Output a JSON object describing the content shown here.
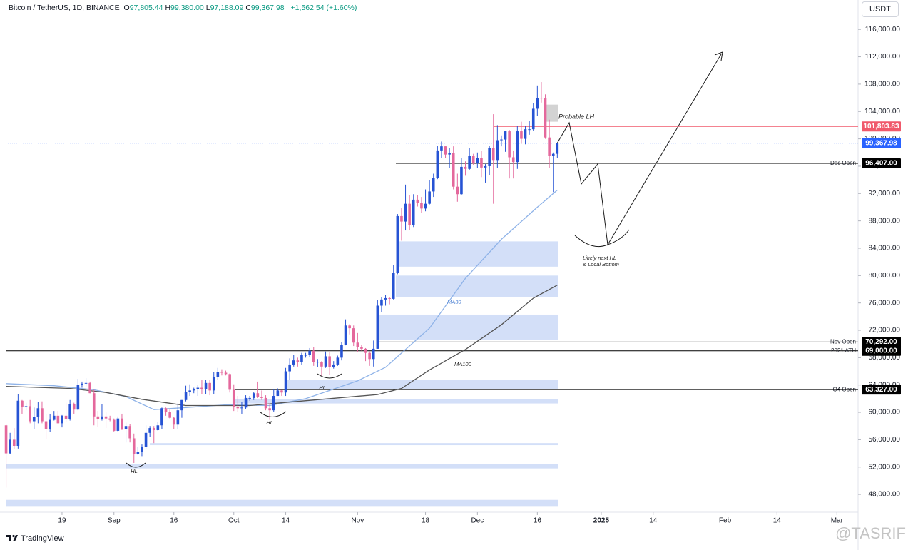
{
  "chart_data": {
    "type": "candlestick",
    "symbol": "Bitcoin / TetherUS, 1D, BINANCE",
    "ohlc_legend": [
      {
        "key": "O",
        "value": "97,805.44"
      },
      {
        "key": "H",
        "value": "99,380.00"
      },
      {
        "key": "L",
        "value": "97,188.09"
      },
      {
        "key": "C",
        "value": "99,367.98"
      }
    ],
    "change": "+1,562.54 (+1.60%)",
    "currency": "USDT",
    "brand": "TradingView",
    "watermark": "@TASRIF",
    "up_color": "#2653d4",
    "down_color": "#e4689c",
    "xlim": [
      -0.1,
      213.3
    ],
    "ylim": [
      45400,
      120300
    ],
    "xticks": [
      {
        "value": 14,
        "label": "19"
      },
      {
        "value": 27,
        "label": "Sep"
      },
      {
        "value": 42,
        "label": "16"
      },
      {
        "value": 57,
        "label": "Oct"
      },
      {
        "value": 70,
        "label": "14"
      },
      {
        "value": 88,
        "label": "Nov"
      },
      {
        "value": 105,
        "label": "18"
      },
      {
        "value": 118,
        "label": "Dec"
      },
      {
        "value": 133,
        "label": "16"
      },
      {
        "value": 149,
        "label": "2025"
      },
      {
        "value": 162,
        "label": "14"
      },
      {
        "value": 180,
        "label": "Feb"
      },
      {
        "value": 193,
        "label": "14"
      },
      {
        "value": 208,
        "label": "Mar"
      }
    ],
    "yticks": [
      {
        "value": 48000,
        "label": "48,000.00"
      },
      {
        "value": 52000,
        "label": "52,000.00"
      },
      {
        "value": 56000,
        "label": "56,000.00"
      },
      {
        "value": 60000,
        "label": "60,000.00"
      },
      {
        "value": 64000,
        "label": "64,000.00"
      },
      {
        "value": 68000,
        "label": "68,000.00"
      },
      {
        "value": 72000,
        "label": "72,000.00"
      },
      {
        "value": 76000,
        "label": "76,000.00"
      },
      {
        "value": 80000,
        "label": "80,000.00"
      },
      {
        "value": 84000,
        "label": "84,000.00"
      },
      {
        "value": 88000,
        "label": "88,000.00"
      },
      {
        "value": 92000,
        "label": "92,000.00"
      },
      {
        "value": 96000,
        "label": "96,000.00"
      },
      {
        "value": 100000,
        "label": "100,000.00"
      },
      {
        "value": 104000,
        "label": "104,000.00"
      },
      {
        "value": 108000,
        "label": "108,000.00"
      },
      {
        "value": 112000,
        "label": "112,000.00"
      },
      {
        "value": 116000,
        "label": "116,000.00"
      }
    ],
    "x": [
      0,
      1,
      2,
      3,
      4,
      5,
      6,
      7,
      8,
      9,
      10,
      11,
      12,
      13,
      14,
      15,
      16,
      17,
      18,
      19,
      20,
      21,
      22,
      23,
      24,
      25,
      26,
      27,
      28,
      29,
      30,
      31,
      32,
      33,
      34,
      35,
      36,
      37,
      38,
      39,
      40,
      41,
      42,
      43,
      44,
      45,
      46,
      47,
      48,
      49,
      50,
      51,
      52,
      53,
      54,
      55,
      56,
      57,
      58,
      59,
      60,
      61,
      62,
      63,
      64,
      65,
      66,
      67,
      68,
      69,
      70,
      71,
      72,
      73,
      74,
      75,
      76,
      77,
      78,
      79,
      80,
      81,
      82,
      83,
      84,
      85,
      86,
      87,
      88,
      89,
      90,
      91,
      92,
      93,
      94,
      95,
      96,
      97,
      98,
      99,
      100,
      101,
      102,
      103,
      104,
      105,
      106,
      107,
      108,
      109,
      110,
      111,
      112,
      113,
      114,
      115,
      116,
      117,
      118,
      119,
      120,
      121,
      122,
      123,
      124,
      125,
      126,
      127,
      128,
      129,
      130,
      131,
      132,
      133,
      134,
      135,
      136,
      137,
      138
    ],
    "candles": [
      [
        58100,
        58300,
        49000,
        54000
      ],
      [
        54000,
        57000,
        53900,
        56000
      ],
      [
        56000,
        57700,
        54600,
        55100
      ],
      [
        55100,
        62700,
        54700,
        61700
      ],
      [
        61700,
        61800,
        59800,
        60800
      ],
      [
        60800,
        61400,
        60300,
        60900
      ],
      [
        60900,
        61800,
        58400,
        58700
      ],
      [
        58700,
        60700,
        57600,
        59300
      ],
      [
        59300,
        61500,
        58400,
        60600
      ],
      [
        60600,
        61600,
        58400,
        58700
      ],
      [
        58700,
        59800,
        56100,
        57500
      ],
      [
        57500,
        59800,
        57100,
        58900
      ],
      [
        58900,
        60200,
        58800,
        59500
      ],
      [
        59500,
        60200,
        58400,
        58400
      ],
      [
        58400,
        59600,
        57800,
        59500
      ],
      [
        59500,
        61400,
        58600,
        59000
      ],
      [
        59000,
        61800,
        58800,
        61200
      ],
      [
        61200,
        61400,
        59800,
        60400
      ],
      [
        60400,
        64900,
        60300,
        64000
      ],
      [
        64000,
        64500,
        63600,
        64200
      ],
      [
        64200,
        65000,
        63800,
        64300
      ],
      [
        64300,
        64500,
        62800,
        62800
      ],
      [
        62800,
        63300,
        58100,
        59400
      ],
      [
        59400,
        60200,
        57900,
        59000
      ],
      [
        59000,
        61200,
        58800,
        59400
      ],
      [
        59400,
        60000,
        57700,
        59100
      ],
      [
        59100,
        59500,
        58700,
        58900
      ],
      [
        58900,
        59100,
        57200,
        57300
      ],
      [
        57300,
        59400,
        57100,
        59100
      ],
      [
        59100,
        59800,
        57400,
        57500
      ],
      [
        57500,
        58500,
        55600,
        58000
      ],
      [
        58000,
        58300,
        55600,
        56200
      ],
      [
        56200,
        56900,
        52600,
        53900
      ],
      [
        53900,
        54900,
        53800,
        54200
      ],
      [
        54200,
        55300,
        53600,
        54900
      ],
      [
        54900,
        58100,
        54600,
        57000
      ],
      [
        57000,
        58000,
        56400,
        57700
      ],
      [
        57700,
        58000,
        55500,
        57400
      ],
      [
        57400,
        58600,
        57300,
        58100
      ],
      [
        58100,
        60700,
        57600,
        60600
      ],
      [
        60600,
        60700,
        59500,
        60000
      ],
      [
        60000,
        60400,
        59100,
        59200
      ],
      [
        59200,
        59300,
        57500,
        58200
      ],
      [
        58200,
        61300,
        57600,
        60300
      ],
      [
        60300,
        61800,
        59200,
        61800
      ],
      [
        61800,
        63900,
        61600,
        63000
      ],
      [
        63000,
        64100,
        62400,
        63200
      ],
      [
        63200,
        63600,
        62800,
        63400
      ],
      [
        63400,
        64000,
        62400,
        63600
      ],
      [
        63600,
        64800,
        62700,
        63400
      ],
      [
        63400,
        64800,
        62700,
        64300
      ],
      [
        64300,
        64800,
        62500,
        63200
      ],
      [
        63200,
        65900,
        62700,
        65200
      ],
      [
        65200,
        66500,
        64800,
        65900
      ],
      [
        65900,
        66300,
        65400,
        65800
      ],
      [
        65800,
        66100,
        65400,
        65600
      ],
      [
        65600,
        65700,
        62900,
        63300
      ],
      [
        63300,
        64100,
        60200,
        60800
      ],
      [
        60800,
        62400,
        60000,
        60600
      ],
      [
        60600,
        61500,
        59800,
        60700
      ],
      [
        60700,
        62500,
        60500,
        62100
      ],
      [
        62100,
        62400,
        61700,
        62100
      ],
      [
        62100,
        63000,
        61800,
        62800
      ],
      [
        62800,
        64500,
        62100,
        62200
      ],
      [
        62200,
        63200,
        61800,
        62100
      ],
      [
        62100,
        62500,
        60300,
        60600
      ],
      [
        60600,
        61300,
        58900,
        60300
      ],
      [
        60300,
        63400,
        60100,
        62400
      ],
      [
        62400,
        63500,
        62400,
        63200
      ],
      [
        63200,
        63300,
        62400,
        62900
      ],
      [
        62900,
        66500,
        62400,
        66000
      ],
      [
        66000,
        67900,
        64800,
        67000
      ],
      [
        67000,
        68400,
        66700,
        67600
      ],
      [
        67600,
        68000,
        66700,
        67400
      ],
      [
        67400,
        68700,
        67000,
        68400
      ],
      [
        68400,
        68700,
        68000,
        68400
      ],
      [
        68400,
        69400,
        68100,
        69000
      ],
      [
        69000,
        69500,
        66800,
        67400
      ],
      [
        67400,
        67800,
        66600,
        67400
      ],
      [
        67400,
        67500,
        65300,
        66700
      ],
      [
        66700,
        68900,
        66500,
        68200
      ],
      [
        68200,
        68800,
        65500,
        66600
      ],
      [
        66600,
        67500,
        66400,
        67000
      ],
      [
        67000,
        68300,
        66800,
        68000
      ],
      [
        68000,
        70300,
        67600,
        69900
      ],
      [
        69900,
        73600,
        69800,
        72700
      ],
      [
        72700,
        72900,
        71400,
        72300
      ],
      [
        72300,
        72700,
        69700,
        70200
      ],
      [
        70200,
        71600,
        68800,
        69500
      ],
      [
        69500,
        69900,
        69000,
        69300
      ],
      [
        69300,
        69400,
        67500,
        68700
      ],
      [
        68700,
        68900,
        66800,
        67800
      ],
      [
        67800,
        70500,
        66700,
        69300
      ],
      [
        69300,
        76400,
        69300,
        75600
      ],
      [
        75600,
        76900,
        74700,
        76500
      ],
      [
        76500,
        77200,
        75600,
        76700
      ],
      [
        76700,
        76800,
        75800,
        76600
      ],
      [
        76600,
        81500,
        76500,
        80400
      ],
      [
        80400,
        89000,
        80200,
        88700
      ],
      [
        88700,
        89900,
        85100,
        87900
      ],
      [
        87900,
        93300,
        86600,
        90500
      ],
      [
        90500,
        91800,
        86700,
        87400
      ],
      [
        87400,
        91900,
        87100,
        91100
      ],
      [
        91100,
        91800,
        90100,
        90600
      ],
      [
        90600,
        91500,
        89200,
        89800
      ],
      [
        89800,
        92600,
        89400,
        90500
      ],
      [
        90500,
        94000,
        90400,
        92300
      ],
      [
        92300,
        94900,
        91500,
        94300
      ],
      [
        94300,
        99000,
        94100,
        98300
      ],
      [
        98300,
        99600,
        97200,
        98900
      ],
      [
        98900,
        98900,
        97200,
        97700
      ],
      [
        97700,
        98700,
        95700,
        97900
      ],
      [
        97900,
        98900,
        92600,
        93000
      ],
      [
        93000,
        94900,
        90800,
        91900
      ],
      [
        91900,
        97200,
        91800,
        95900
      ],
      [
        95900,
        96700,
        94600,
        95600
      ],
      [
        95600,
        98700,
        95400,
        97500
      ],
      [
        97500,
        97800,
        96200,
        96400
      ],
      [
        96400,
        98000,
        95700,
        97200
      ],
      [
        97200,
        98200,
        94400,
        95800
      ],
      [
        95800,
        96300,
        93600,
        96000
      ],
      [
        96000,
        99000,
        94700,
        98700
      ],
      [
        98700,
        103600,
        90500,
        96900
      ],
      [
        96900,
        102000,
        95700,
        99800
      ],
      [
        99800,
        100500,
        98900,
        99900
      ],
      [
        99900,
        101200,
        98100,
        101100
      ],
      [
        101100,
        101300,
        94200,
        97300
      ],
      [
        97300,
        98300,
        94200,
        96600
      ],
      [
        96600,
        101900,
        95600,
        101100
      ],
      [
        101100,
        102500,
        99300,
        100000
      ],
      [
        100000,
        101900,
        99200,
        101400
      ],
      [
        101400,
        102600,
        100600,
        101400
      ],
      [
        101400,
        105200,
        101200,
        104400
      ],
      [
        104400,
        107800,
        103300,
        106000
      ],
      [
        106000,
        108300,
        105300,
        105900
      ],
      [
        105900,
        106500,
        100000,
        100200
      ],
      [
        100200,
        102800,
        95700,
        97500
      ],
      [
        97500,
        98000,
        92200,
        97800
      ],
      [
        97805.44,
        99380,
        97188.09,
        99367.98
      ]
    ],
    "ma_lines": [
      {
        "name": "MA30",
        "color": "#8fb3e8",
        "x": [
          0,
          12,
          22,
          30,
          37,
          45,
          55,
          66,
          75,
          88,
          95,
          106,
          115,
          124,
          133,
          138
        ],
        "values": [
          64200,
          63900,
          63300,
          62300,
          60400,
          60700,
          61100,
          61000,
          62000,
          64600,
          66600,
          72300,
          79600,
          85300,
          90000,
          92500
        ]
      },
      {
        "name": "MA100",
        "color": "#555555",
        "x": [
          0,
          16,
          25,
          34,
          45,
          61,
          79,
          93,
          99,
          106,
          115,
          124,
          132,
          138
        ],
        "values": [
          63800,
          63500,
          62900,
          61900,
          61000,
          61000,
          61900,
          62600,
          63500,
          66200,
          69200,
          72800,
          76700,
          78600
        ]
      }
    ],
    "zones": [
      [
        81300,
        85000
      ],
      [
        76800,
        80000
      ],
      [
        70600,
        74300
      ],
      [
        63300,
        64800
      ],
      [
        61300,
        61900
      ],
      [
        55200,
        55500
      ],
      [
        51800,
        52400
      ],
      [
        46200,
        47200
      ]
    ],
    "zone_color": "#d3dff8",
    "resistance_box": [
      102500,
      105000
    ],
    "levels": [
      {
        "value": 101803.83,
        "label": "101,803.83",
        "color": "#f0596b"
      },
      {
        "value": 99367.98,
        "label": "99,367.98",
        "color": "#2962ff"
      },
      {
        "name": "Dec Open",
        "value": 96407,
        "label": "96,407.00",
        "color": "#000000"
      },
      {
        "name": "Nov Open",
        "value": 70292,
        "label": "70,292.00",
        "color": "#000000"
      },
      {
        "name": "2021 ATH",
        "value": 69000,
        "label": "69,000.00",
        "color": "#000000"
      },
      {
        "name": "Q4 Open",
        "value": 63327,
        "label": "63,327.00",
        "color": "#000000"
      }
    ],
    "annotations": [
      "Probable LH",
      "Likely next HL",
      "& Local Bottom",
      "HL",
      "HL",
      "HL",
      "MA30",
      "MA100"
    ]
  }
}
